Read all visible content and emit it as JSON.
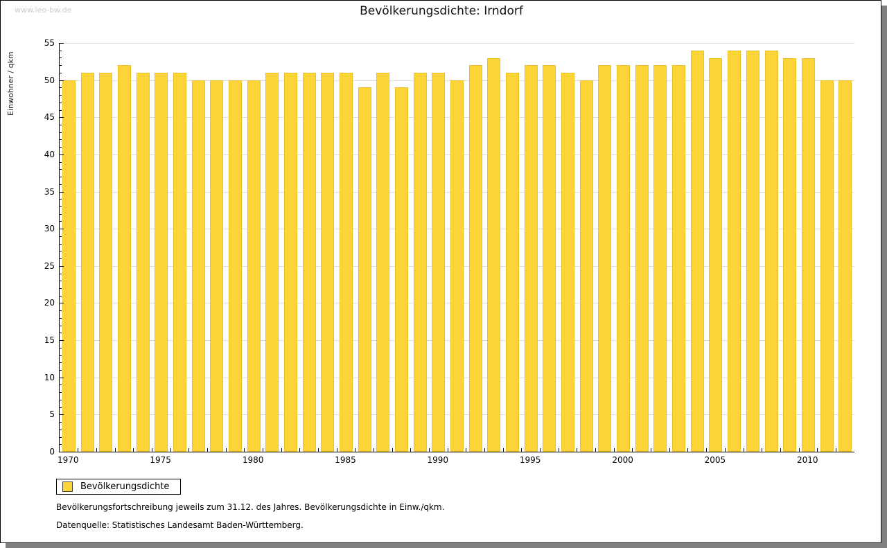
{
  "watermark": "www.leo-bw.de",
  "title": "Bevölkerungsdichte: Irndorf",
  "chart_data": {
    "type": "bar",
    "title": "Bevölkerungsdichte: Irndorf",
    "xlabel": "",
    "ylabel": "Einwohner / qkm",
    "ylim": [
      0,
      55
    ],
    "ytick_major_step": 5,
    "ytick_minor_step": 1,
    "grid": true,
    "categories": [
      1970,
      1971,
      1972,
      1973,
      1974,
      1975,
      1976,
      1977,
      1978,
      1979,
      1980,
      1981,
      1982,
      1983,
      1984,
      1985,
      1986,
      1987,
      1988,
      1989,
      1990,
      1991,
      1992,
      1993,
      1994,
      1995,
      1996,
      1997,
      1998,
      1999,
      2000,
      2001,
      2002,
      2003,
      2004,
      2005,
      2006,
      2007,
      2008,
      2009,
      2010,
      2011,
      2012
    ],
    "values": [
      50,
      51,
      51,
      52,
      51,
      51,
      51,
      50,
      50,
      50,
      50,
      51,
      51,
      51,
      51,
      51,
      49,
      51,
      49,
      51,
      51,
      50,
      52,
      53,
      51,
      52,
      52,
      51,
      50,
      52,
      52,
      52,
      52,
      52,
      54,
      53,
      54,
      54,
      54,
      53,
      53,
      50,
      50
    ],
    "x_major_ticks": [
      1970,
      1975,
      1980,
      1985,
      1990,
      1995,
      2000,
      2005,
      2010
    ],
    "legend": {
      "label": "Bevölkerungsdichte",
      "position": "bottom-left"
    }
  },
  "footer": {
    "note": "Bevölkerungsfortschreibung jeweils zum 31.12. des Jahres. Bevölkerungsdichte in Einw./qkm.",
    "source": "Datenquelle: Statistisches Landesamt Baden-Württemberg."
  },
  "colors": {
    "bar_fill": "#FBD437",
    "bar_border": "#EFBE2C",
    "gridline": "#dcdcdc",
    "axis": "#000000",
    "watermark": "#cdcdcd",
    "shadow": "#7f7f7f",
    "swatch_border": "#444444"
  }
}
